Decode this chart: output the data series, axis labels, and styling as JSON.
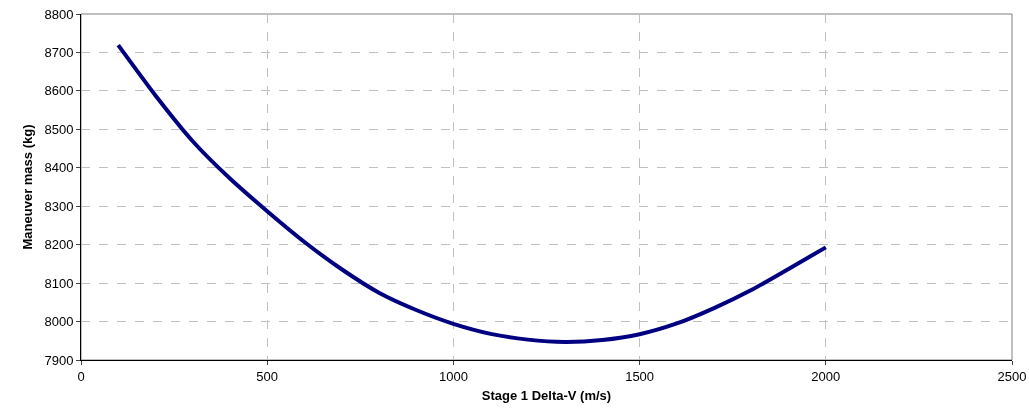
{
  "chart_data": {
    "type": "line",
    "xlabel": "Stage 1 Delta-V (m/s)",
    "ylabel": "Maneuver mass (kg)",
    "x": [
      100,
      200,
      300,
      400,
      500,
      600,
      700,
      800,
      900,
      1000,
      1100,
      1200,
      1300,
      1400,
      1500,
      1600,
      1700,
      1800,
      1900,
      2000
    ],
    "series": [
      {
        "color": "#000080",
        "values": [
          8719,
          8588,
          8469,
          8372,
          8287,
          8207,
          8136,
          8075,
          8030,
          7994,
          7968,
          7953,
          7947,
          7952,
          7967,
          7995,
          8035,
          8082,
          8137,
          8193
        ]
      }
    ],
    "xlim": [
      0,
      2500
    ],
    "xticks": [
      0,
      500,
      1000,
      1500,
      2000,
      2500
    ],
    "ylim": [
      7900,
      8800
    ],
    "yticks": [
      7900,
      8000,
      8100,
      8200,
      8300,
      8400,
      8500,
      8600,
      8700,
      8800
    ],
    "grid": true,
    "legend": false,
    "marker": "none",
    "line_style": "solid"
  }
}
